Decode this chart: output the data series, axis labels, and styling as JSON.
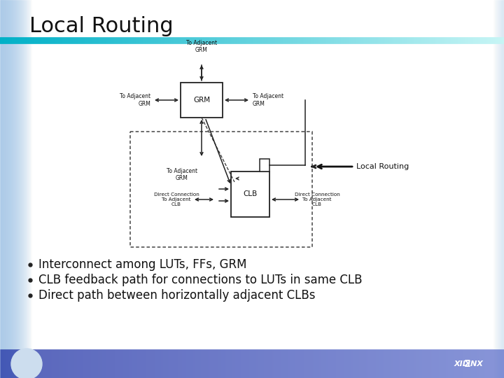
{
  "title": "Local Routing",
  "title_fontsize": 22,
  "title_color": "#111111",
  "bg_color": "#ffffff",
  "bullet_points": [
    "Interconnect among LUTs, FFs, GRM",
    "CLB feedback path for connections to LUTs in same CLB",
    "Direct path between horizontally adjacent CLBs"
  ],
  "bullet_fontsize": 12,
  "diagram_label": "Local Routing",
  "grm_label": "GRM",
  "clb_label": "CLB",
  "to_adj_grm_top": "To Adjacent\nGRM",
  "to_adj_grm_left": "To Adjacent\nGRM",
  "to_adj_grm_right": "To Adjacent\nGRM",
  "to_adj_grm_inner": "To Adjacent\nGRM",
  "direct_conn_left": "Direct Connection\nTo Adjacent\nCLB",
  "direct_conn_right": "Direct Connection\nTo Adjacent\nCLB",
  "left_gradient_color": "#a8c8e8",
  "header_bar_colors": [
    "#00b0c8",
    "#a8dce8"
  ],
  "footer_bar_colors": [
    "#2244aa",
    "#6688cc"
  ]
}
